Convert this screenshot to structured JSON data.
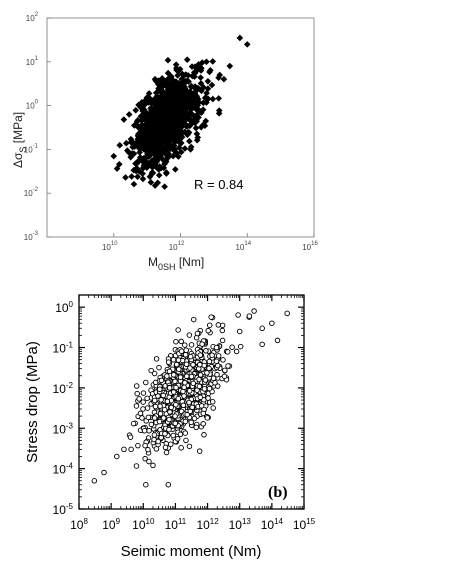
{
  "chart_data": [
    {
      "type": "scatter",
      "panel": "top",
      "title": "",
      "xlabel": "M",
      "xlabel_sub": "0SH",
      "xlabel_unit": " [Nm]",
      "ylabel": "Δσ",
      "ylabel_sub": "S",
      "ylabel_unit": " [MPa]",
      "x_scale": "log",
      "y_scale": "log",
      "xlim": [
        100000000.0,
        1e+16
      ],
      "ylim": [
        0.001,
        100
      ],
      "x_ticks": [
        {
          "value": 10000000000.0,
          "base": "10",
          "exp": "10"
        },
        {
          "value": 1000000000000.0,
          "base": "10",
          "exp": "12"
        },
        {
          "value": 100000000000000.0,
          "base": "10",
          "exp": "14"
        },
        {
          "value": 1e+16,
          "base": "10",
          "exp": "16"
        }
      ],
      "y_ticks": [
        {
          "value": 0.001,
          "base": "10",
          "exp": "-3"
        },
        {
          "value": 0.01,
          "base": "10",
          "exp": "-2"
        },
        {
          "value": 0.1,
          "base": "10",
          "exp": "-1"
        },
        {
          "value": 1,
          "base": "10",
          "exp": "0"
        },
        {
          "value": 10,
          "base": "10",
          "exp": "1"
        },
        {
          "value": 100,
          "base": "10",
          "exp": "2"
        }
      ],
      "annotation": "R = 0.84",
      "marker": "filled-diamond",
      "grid": false,
      "cloud": {
        "center_log_x": 11.6,
        "center_log_y": -0.35,
        "spread_log_x": 0.5,
        "spread_log_y": 0.45,
        "slope": 0.55,
        "count": 1100
      },
      "points": [
        {
          "x": 10000000000.0,
          "y": 0.07
        },
        {
          "x": 60000000000000.0,
          "y": 35
        },
        {
          "x": 100000000000000.0,
          "y": 25
        },
        {
          "x": 6000000000000.0,
          "y": 10
        },
        {
          "x": 30000000000000.0,
          "y": 8
        },
        {
          "x": 700000000000.0,
          "y": 0.035
        },
        {
          "x": 2000000000000.0,
          "y": 0.1
        },
        {
          "x": 150000000000.0,
          "y": 0.04
        },
        {
          "x": 15000000000000.0,
          "y": 5
        },
        {
          "x": 20000000000000.0,
          "y": 4
        }
      ]
    },
    {
      "type": "scatter",
      "panel": "bottom",
      "title": "",
      "xlabel": "Seimic moment (Nm)",
      "ylabel": "Stress drop (MPa)",
      "x_scale": "log",
      "y_scale": "log",
      "xlim": [
        100000000.0,
        1000000000000000.0
      ],
      "ylim": [
        1e-05,
        2
      ],
      "x_ticks": [
        {
          "value": 100000000.0,
          "base": "10",
          "exp": "8"
        },
        {
          "value": 1000000000.0,
          "base": "10",
          "exp": "9"
        },
        {
          "value": 10000000000.0,
          "base": "10",
          "exp": "10"
        },
        {
          "value": 100000000000.0,
          "base": "10",
          "exp": "11"
        },
        {
          "value": 1000000000000.0,
          "base": "10",
          "exp": "12"
        },
        {
          "value": 10000000000000.0,
          "base": "10",
          "exp": "13"
        },
        {
          "value": 100000000000000.0,
          "base": "10",
          "exp": "14"
        },
        {
          "value": 1000000000000000.0,
          "base": "10",
          "exp": "15"
        }
      ],
      "y_ticks": [
        {
          "value": 1e-05,
          "base": "10",
          "exp": "-5"
        },
        {
          "value": 0.0001,
          "base": "10",
          "exp": "-4"
        },
        {
          "value": 0.001,
          "base": "10",
          "exp": "-3"
        },
        {
          "value": 0.01,
          "base": "10",
          "exp": "-2"
        },
        {
          "value": 0.1,
          "base": "10",
          "exp": "-1"
        },
        {
          "value": 1,
          "base": "10",
          "exp": "0"
        }
      ],
      "panel_label": "(b)",
      "marker": "open-circle",
      "grid": false,
      "cloud": {
        "center_log_x": 11.2,
        "center_log_y": -2.1,
        "spread_log_x": 0.6,
        "spread_log_y": 0.55,
        "slope": 0.6,
        "count": 900
      },
      "points": [
        {
          "x": 300000000.0,
          "y": 5e-05
        },
        {
          "x": 600000000.0,
          "y": 8e-05
        },
        {
          "x": 1500000000.0,
          "y": 0.0002
        },
        {
          "x": 2500000000.0,
          "y": 0.0003
        },
        {
          "x": 4000000000.0,
          "y": 0.0006
        },
        {
          "x": 12000000000.0,
          "y": 4e-05
        },
        {
          "x": 60000000000.0,
          "y": 4e-05
        },
        {
          "x": 20000000000.0,
          "y": 0.00012
        },
        {
          "x": 15000000000.0,
          "y": 0.00015
        },
        {
          "x": 50000000000000.0,
          "y": 0.3
        },
        {
          "x": 100000000000000.0,
          "y": 0.4
        },
        {
          "x": 300000000000000.0,
          "y": 0.7
        },
        {
          "x": 150000000000000.0,
          "y": 0.15
        },
        {
          "x": 50000000000000.0,
          "y": 0.12
        },
        {
          "x": 20000000000000.0,
          "y": 0.6
        },
        {
          "x": 10000000000000.0,
          "y": 0.25
        },
        {
          "x": 8000000000000.0,
          "y": 0.08
        }
      ]
    }
  ]
}
